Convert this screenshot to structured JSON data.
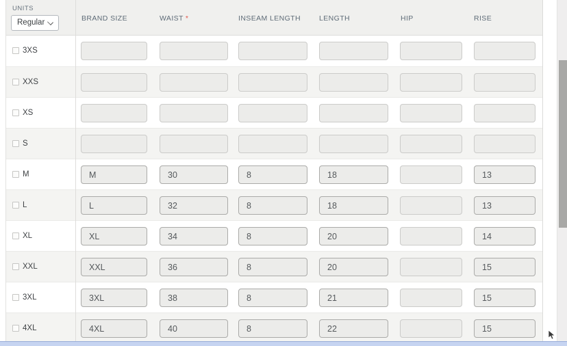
{
  "toolbar": {
    "units_label": "UNITS",
    "units_value": "Regular"
  },
  "table": {
    "required_marker": "*",
    "columns": [
      {
        "key": "brand_size",
        "label": "BRAND SIZE",
        "required": false
      },
      {
        "key": "waist",
        "label": "WAIST",
        "required": true
      },
      {
        "key": "inseam_length",
        "label": "INSEAM LENGTH",
        "required": false
      },
      {
        "key": "length",
        "label": "LENGTH",
        "required": false
      },
      {
        "key": "hip",
        "label": "HIP",
        "required": false
      },
      {
        "key": "rise",
        "label": "RISE",
        "required": false
      }
    ],
    "rows": [
      {
        "size": "3XS",
        "checked": false,
        "values": {
          "brand_size": "",
          "waist": "",
          "inseam_length": "",
          "length": "",
          "hip": "",
          "rise": ""
        }
      },
      {
        "size": "XXS",
        "checked": false,
        "values": {
          "brand_size": "",
          "waist": "",
          "inseam_length": "",
          "length": "",
          "hip": "",
          "rise": ""
        }
      },
      {
        "size": "XS",
        "checked": false,
        "values": {
          "brand_size": "",
          "waist": "",
          "inseam_length": "",
          "length": "",
          "hip": "",
          "rise": ""
        }
      },
      {
        "size": "S",
        "checked": false,
        "values": {
          "brand_size": "",
          "waist": "",
          "inseam_length": "",
          "length": "",
          "hip": "",
          "rise": ""
        }
      },
      {
        "size": "M",
        "checked": false,
        "values": {
          "brand_size": "M",
          "waist": "30",
          "inseam_length": "8",
          "length": "18",
          "hip": "",
          "rise": "13"
        }
      },
      {
        "size": "L",
        "checked": false,
        "values": {
          "brand_size": "L",
          "waist": "32",
          "inseam_length": "8",
          "length": "18",
          "hip": "",
          "rise": "13"
        }
      },
      {
        "size": "XL",
        "checked": false,
        "values": {
          "brand_size": "XL",
          "waist": "34",
          "inseam_length": "8",
          "length": "20",
          "hip": "",
          "rise": "14"
        }
      },
      {
        "size": "XXL",
        "checked": false,
        "values": {
          "brand_size": "XXL",
          "waist": "36",
          "inseam_length": "8",
          "length": "20",
          "hip": "",
          "rise": "15"
        }
      },
      {
        "size": "3XL",
        "checked": false,
        "values": {
          "brand_size": "3XL",
          "waist": "38",
          "inseam_length": "8",
          "length": "21",
          "hip": "",
          "rise": "15"
        }
      },
      {
        "size": "4XL",
        "checked": false,
        "values": {
          "brand_size": "4XL",
          "waist": "40",
          "inseam_length": "8",
          "length": "22",
          "hip": "",
          "rise": "15"
        }
      }
    ]
  },
  "colors": {
    "required_asterisk": "#e2574c",
    "header_band": "#f0f0ee",
    "row_stripe": "#f4f4f2",
    "input_fill": "#ececea",
    "hscroll_highlight": "#c6d4f1",
    "vscroll_thumb": "#a8a8a6"
  }
}
